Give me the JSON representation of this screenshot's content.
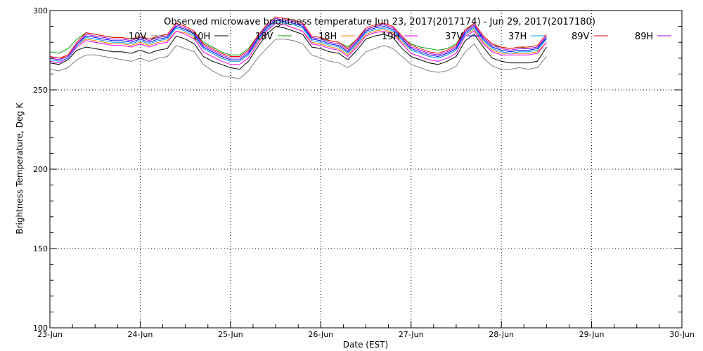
{
  "chart_data": {
    "type": "line",
    "title": "Observed microwave brightness temperature Jun 23, 2017(2017174) - Jun 29, 2017(2017180)",
    "xlabel": "Date (EST)",
    "ylabel": "Brightness Temperature, Deg K",
    "xlim": [
      "23-Jun",
      "30-Jun"
    ],
    "ylim": [
      100,
      300
    ],
    "x_ticks": [
      "23-Jun",
      "24-Jun",
      "25-Jun",
      "26-Jun",
      "27-Jun",
      "28-Jun",
      "29-Jun",
      "30-Jun"
    ],
    "y_ticks": [
      100,
      150,
      200,
      250,
      300
    ],
    "grid": "dotted",
    "legend_position": "top",
    "x_unit": "days since 23-Jun",
    "x": [
      0.0,
      0.1,
      0.2,
      0.3,
      0.4,
      0.5,
      0.6,
      0.7,
      0.8,
      0.9,
      1.0,
      1.1,
      1.2,
      1.3,
      1.4,
      1.5,
      1.6,
      1.7,
      1.8,
      1.9,
      2.0,
      2.1,
      2.2,
      2.3,
      2.4,
      2.5,
      2.6,
      2.7,
      2.8,
      2.9,
      3.0,
      3.1,
      3.2,
      3.3,
      3.4,
      3.5,
      3.6,
      3.7,
      3.8,
      3.9,
      4.0,
      4.1,
      4.2,
      4.3,
      4.4,
      4.5,
      4.6,
      4.7,
      4.8,
      4.9,
      5.0,
      5.1,
      5.2,
      5.3,
      5.4,
      5.5
    ],
    "series": [
      {
        "name": "10V",
        "color": "#808080",
        "values": [
          263,
          262,
          264,
          269,
          272,
          272,
          271,
          270,
          269,
          268,
          270,
          268,
          270,
          271,
          278,
          276,
          274,
          266,
          262,
          259,
          258,
          257,
          262,
          270,
          276,
          282,
          282,
          281,
          279,
          272,
          270,
          268,
          267,
          264,
          268,
          274,
          276,
          278,
          276,
          271,
          266,
          264,
          262,
          261,
          262,
          265,
          274,
          279,
          270,
          265,
          263,
          263,
          264,
          263,
          264,
          271
        ]
      },
      {
        "name": "10H",
        "color": "#000000",
        "values": [
          267,
          266,
          269,
          275,
          277,
          276,
          275,
          274,
          274,
          273,
          275,
          273,
          275,
          276,
          284,
          282,
          279,
          271,
          268,
          266,
          264,
          263,
          268,
          277,
          285,
          290,
          289,
          287,
          285,
          277,
          276,
          274,
          273,
          269,
          275,
          282,
          284,
          285,
          283,
          276,
          271,
          269,
          267,
          266,
          268,
          271,
          281,
          285,
          277,
          270,
          268,
          267,
          267,
          267,
          268,
          277
        ]
      },
      {
        "name": "18V",
        "color": "#00a000",
        "values": [
          274,
          273,
          276,
          282,
          286,
          285,
          284,
          283,
          283,
          282,
          283,
          282,
          283,
          284,
          290,
          288,
          286,
          280,
          277,
          274,
          272,
          272,
          276,
          284,
          290,
          293,
          292,
          291,
          289,
          283,
          282,
          281,
          280,
          277,
          282,
          288,
          290,
          291,
          289,
          283,
          279,
          277,
          276,
          275,
          276,
          279,
          288,
          291,
          283,
          278,
          277,
          276,
          277,
          276,
          277,
          282
        ]
      },
      {
        "name": "18H",
        "color": "#ff8000",
        "values": [
          270,
          269,
          272,
          278,
          282,
          281,
          280,
          279,
          279,
          278,
          280,
          278,
          280,
          281,
          287,
          286,
          283,
          276,
          273,
          270,
          268,
          268,
          272,
          280,
          287,
          292,
          291,
          289,
          287,
          280,
          279,
          277,
          276,
          272,
          278,
          285,
          287,
          288,
          286,
          280,
          275,
          273,
          271,
          270,
          272,
          275,
          285,
          288,
          280,
          275,
          273,
          273,
          273,
          273,
          274,
          280
        ]
      },
      {
        "name": "19H",
        "color": "#ff00ff",
        "values": [
          268,
          267,
          270,
          277,
          281,
          280,
          279,
          278,
          278,
          277,
          279,
          277,
          279,
          280,
          287,
          285,
          282,
          274,
          271,
          268,
          266,
          266,
          270,
          279,
          287,
          292,
          291,
          289,
          287,
          279,
          278,
          276,
          275,
          271,
          277,
          284,
          286,
          287,
          285,
          279,
          273,
          271,
          269,
          268,
          270,
          273,
          284,
          287,
          279,
          274,
          272,
          272,
          272,
          272,
          273,
          280
        ]
      },
      {
        "name": "37V",
        "color": "#0000ff",
        "values": [
          270,
          269,
          271,
          279,
          284,
          283,
          282,
          281,
          281,
          280,
          282,
          280,
          282,
          283,
          290,
          288,
          285,
          277,
          274,
          271,
          269,
          269,
          273,
          282,
          289,
          294,
          293,
          292,
          290,
          282,
          281,
          279,
          278,
          274,
          280,
          287,
          289,
          290,
          288,
          282,
          276,
          274,
          272,
          271,
          273,
          276,
          286,
          290,
          282,
          277,
          275,
          274,
          275,
          275,
          276,
          283
        ]
      },
      {
        "name": "37H",
        "color": "#00a0ff",
        "values": [
          269,
          268,
          270,
          278,
          283,
          282,
          281,
          280,
          280,
          279,
          281,
          279,
          281,
          282,
          289,
          287,
          284,
          276,
          273,
          270,
          268,
          268,
          272,
          281,
          288,
          293,
          292,
          291,
          289,
          281,
          280,
          278,
          277,
          273,
          279,
          286,
          288,
          289,
          287,
          281,
          275,
          273,
          271,
          270,
          272,
          275,
          285,
          289,
          281,
          276,
          274,
          273,
          274,
          274,
          275,
          282
        ]
      },
      {
        "name": "89V",
        "color": "#ff0000",
        "values": [
          271,
          270,
          272,
          280,
          286,
          285,
          284,
          283,
          283,
          282,
          284,
          282,
          284,
          285,
          292,
          290,
          287,
          279,
          276,
          273,
          271,
          271,
          275,
          284,
          291,
          296,
          295,
          294,
          292,
          284,
          283,
          281,
          280,
          276,
          282,
          289,
          291,
          292,
          290,
          284,
          278,
          276,
          274,
          273,
          275,
          278,
          288,
          292,
          284,
          279,
          277,
          276,
          277,
          277,
          278,
          285
        ]
      },
      {
        "name": "89H",
        "color": "#a000ff",
        "values": [
          270,
          269,
          271,
          279,
          285,
          284,
          283,
          282,
          282,
          281,
          283,
          281,
          283,
          284,
          291,
          289,
          286,
          278,
          275,
          272,
          270,
          270,
          274,
          283,
          290,
          295,
          294,
          293,
          291,
          283,
          282,
          280,
          279,
          275,
          281,
          288,
          290,
          291,
          289,
          283,
          277,
          275,
          273,
          272,
          274,
          277,
          287,
          291,
          283,
          278,
          276,
          275,
          276,
          276,
          277,
          284
        ]
      }
    ]
  }
}
